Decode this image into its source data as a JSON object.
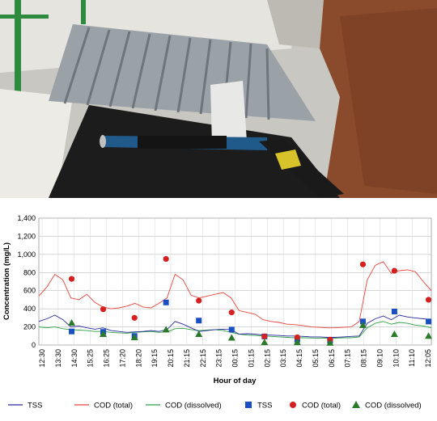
{
  "photo": {
    "description_icon": "monitoring-probe-photo",
    "colors": {
      "sky_concrete": "#cfcfcf",
      "grate": "#9aa2a8",
      "soil": "#8a4a2c",
      "channel": "#1a1a1a",
      "probe": "#1f5a8a",
      "probe_tip": "#d8c42a"
    }
  },
  "chart_data": {
    "type": "line",
    "ylabel": "Concentration (mg/L)",
    "xlabel": "Hour of day",
    "ylim": [
      0,
      1400
    ],
    "yticks": [
      "0",
      "200",
      "400",
      "600",
      "800",
      "1,000",
      "1,200",
      "1,400"
    ],
    "ytick_values": [
      0,
      200,
      400,
      600,
      800,
      1000,
      1200,
      1400
    ],
    "x_start_hour": 12.5,
    "x_end_hour": 36.42,
    "xtick_labels": [
      "12:30",
      "13:30",
      "14:30",
      "15:25",
      "16:25",
      "17:20",
      "18:20",
      "19:15",
      "20:15",
      "21:15",
      "22:15",
      "23:15",
      "00:15",
      "01:15",
      "02:15",
      "03:15",
      "04:15",
      "05:15",
      "06:15",
      "07:15",
      "08:15",
      "09:10",
      "10:10",
      "11:10",
      "12:05"
    ],
    "grid": true,
    "legend_position": "bottom",
    "colors": {
      "tss": "#2a2aa0",
      "cod_total": "#e8453c",
      "cod_dissolved": "#2ea043",
      "marker_tss": "#1a4fc4",
      "marker_cod_total": "#d62020",
      "marker_cod_dissolved": "#2a7a2a"
    },
    "series": [
      {
        "name": "TSS",
        "kind": "line",
        "values": [
          260,
          290,
          330,
          280,
          200,
          210,
          190,
          175,
          190,
          160,
          150,
          140,
          145,
          150,
          160,
          150,
          170,
          260,
          230,
          190,
          150,
          160,
          170,
          175,
          170,
          120,
          125,
          120,
          110,
          110,
          105,
          100,
          100,
          95,
          90,
          90,
          85,
          85,
          90,
          95,
          100,
          240,
          290,
          320,
          280,
          330,
          310,
          300,
          290,
          280
        ]
      },
      {
        "name": "COD (total)",
        "kind": "line",
        "values": [
          540,
          640,
          780,
          720,
          520,
          500,
          560,
          470,
          420,
          400,
          410,
          430,
          460,
          420,
          410,
          460,
          520,
          780,
          720,
          550,
          520,
          540,
          560,
          580,
          520,
          380,
          360,
          340,
          280,
          260,
          250,
          230,
          225,
          215,
          200,
          195,
          190,
          190,
          195,
          200,
          260,
          720,
          880,
          920,
          790,
          820,
          830,
          810,
          700,
          600
        ]
      },
      {
        "name": "COD (dissolved)",
        "kind": "line",
        "values": [
          200,
          190,
          200,
          180,
          170,
          165,
          160,
          150,
          150,
          140,
          135,
          130,
          140,
          145,
          150,
          140,
          145,
          180,
          185,
          170,
          160,
          165,
          170,
          160,
          140,
          120,
          110,
          105,
          100,
          95,
          90,
          85,
          80,
          80,
          78,
          75,
          75,
          75,
          80,
          80,
          90,
          190,
          240,
          260,
          230,
          250,
          240,
          220,
          210,
          190
        ]
      },
      {
        "name": "TSS",
        "kind": "marker-square",
        "points": [
          [
            14.5,
            150
          ],
          [
            16.42,
            145
          ],
          [
            18.33,
            100
          ],
          [
            20.25,
            470
          ],
          [
            22.25,
            270
          ],
          [
            24.25,
            170
          ],
          [
            26.25,
            95
          ],
          [
            28.25,
            60
          ],
          [
            30.25,
            50
          ],
          [
            32.25,
            260
          ],
          [
            34.17,
            370
          ],
          [
            36.25,
            260
          ]
        ]
      },
      {
        "name": "COD (total)",
        "kind": "marker-circle",
        "points": [
          [
            14.5,
            730
          ],
          [
            16.42,
            395
          ],
          [
            18.33,
            300
          ],
          [
            20.25,
            950
          ],
          [
            22.25,
            490
          ],
          [
            24.25,
            360
          ],
          [
            26.25,
            95
          ],
          [
            28.25,
            85
          ],
          [
            30.25,
            60
          ],
          [
            32.25,
            890
          ],
          [
            34.17,
            820
          ],
          [
            36.25,
            500
          ]
        ]
      },
      {
        "name": "COD (dissolved)",
        "kind": "marker-triangle",
        "points": [
          [
            14.5,
            245
          ],
          [
            16.42,
            120
          ],
          [
            18.33,
            85
          ],
          [
            20.25,
            170
          ],
          [
            22.25,
            120
          ],
          [
            24.25,
            80
          ],
          [
            26.25,
            30
          ],
          [
            28.25,
            30
          ],
          [
            30.25,
            25
          ],
          [
            32.25,
            220
          ],
          [
            34.17,
            120
          ],
          [
            36.25,
            100
          ]
        ]
      }
    ]
  },
  "legend": {
    "items": [
      {
        "label": "TSS",
        "kind": "line",
        "color": "#2a2aa0"
      },
      {
        "label": "COD (total)",
        "kind": "line",
        "color": "#e8453c"
      },
      {
        "label": "COD (dissolved)",
        "kind": "line",
        "color": "#2ea043"
      },
      {
        "label": "TSS",
        "kind": "square",
        "color": "#1a4fc4"
      },
      {
        "label": "COD (total)",
        "kind": "circle",
        "color": "#d62020"
      },
      {
        "label": "COD (dissolved)",
        "kind": "triangle",
        "color": "#2a7a2a"
      }
    ]
  }
}
